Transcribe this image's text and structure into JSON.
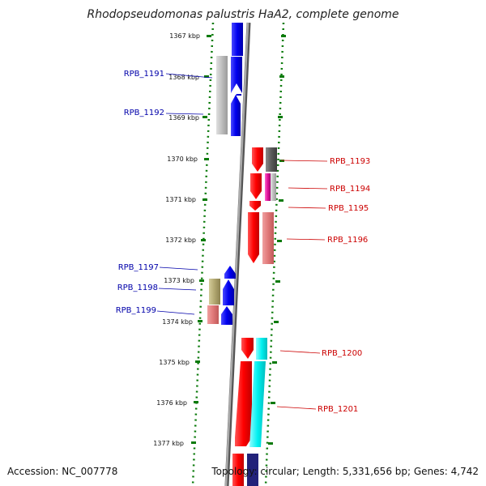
{
  "title": "Rhodopseudomonas palustris HaA2, complete genome",
  "footer": {
    "accession": "Accession: NC_007778",
    "info": "Topology: circular; Length: 5,331,656 bp; Genes: 4,742"
  },
  "colors": {
    "left_strand_label": "#0000aa",
    "right_strand_label": "#cc0000",
    "backbone": "#888888",
    "ruler": "#0a7a0a"
  },
  "ruler": {
    "ticks": [
      "1367 kbp",
      "1368 kbp",
      "1369 kbp",
      "1370 kbp",
      "1371 kbp",
      "1372 kbp",
      "1373 kbp",
      "1374 kbp",
      "1375 kbp",
      "1376 kbp",
      "1377 kbp"
    ]
  },
  "gene_labels": {
    "left": [
      "RPB_1191",
      "RPB_1192",
      "RPB_1197",
      "RPB_1198",
      "RPB_1199"
    ],
    "right": [
      "RPB_1193",
      "RPB_1194",
      "RPB_1195",
      "RPB_1196",
      "RPB_1200",
      "RPB_1201"
    ]
  }
}
